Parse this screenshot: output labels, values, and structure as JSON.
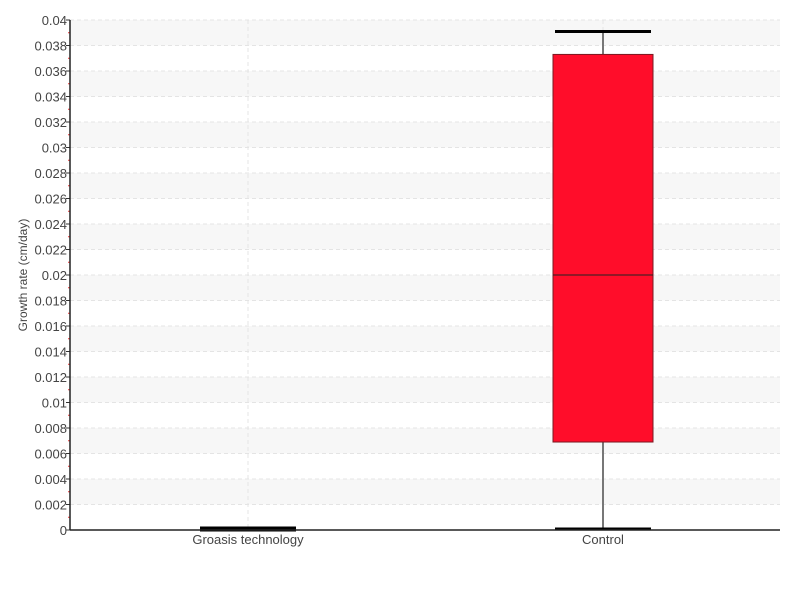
{
  "chart_data": {
    "type": "boxplot",
    "title": "",
    "xlabel": "",
    "ylabel": "Growth rate (cm/day)",
    "ylim": [
      0,
      0.04
    ],
    "ytick_step": 0.002,
    "yticks": [
      "0",
      "0.002",
      "0.004",
      "0.006",
      "0.008",
      "0.01",
      "0.012",
      "0.014",
      "0.016",
      "0.018",
      "0.02",
      "0.022",
      "0.024",
      "0.026",
      "0.028",
      "0.03",
      "0.032",
      "0.034",
      "0.036",
      "0.038",
      "0.04"
    ],
    "grid": true,
    "alternating_bands": true,
    "categories": [
      "Groasis technology",
      "Control"
    ],
    "boxes": [
      {
        "category": "Groasis technology",
        "min": 0,
        "q1": 0,
        "median": 0,
        "q3": 0,
        "max": 0,
        "color": "#000000"
      },
      {
        "category": "Control",
        "min": 0,
        "q1": 0.0069,
        "median": 0.02,
        "q3": 0.0373,
        "max": 0.0391,
        "color": "#ff0d2a"
      }
    ]
  }
}
